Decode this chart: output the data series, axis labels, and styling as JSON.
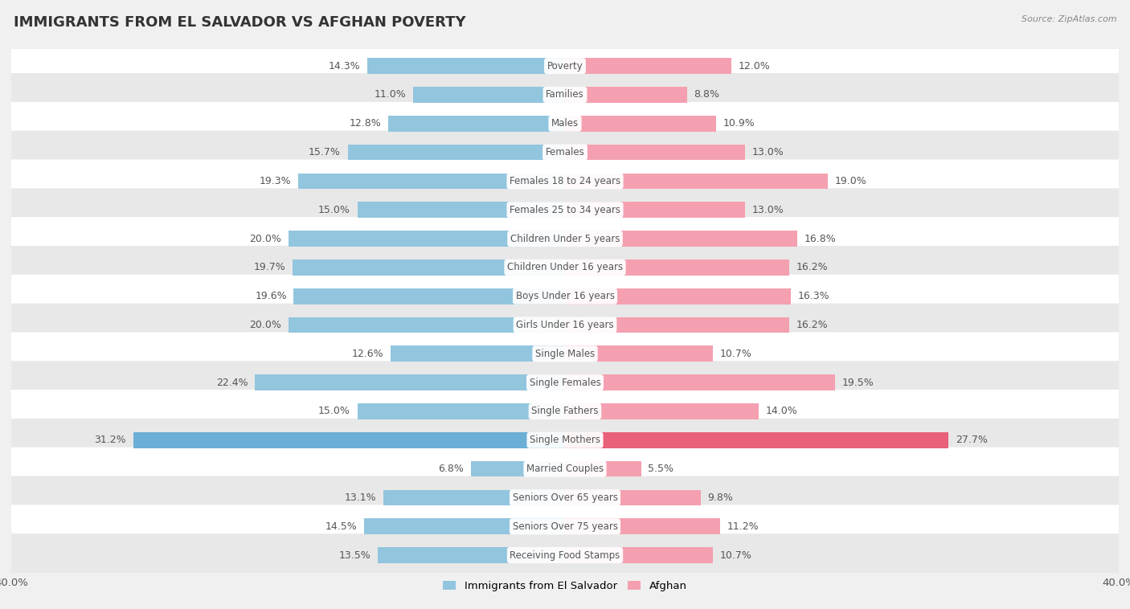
{
  "title": "IMMIGRANTS FROM EL SALVADOR VS AFGHAN POVERTY",
  "source": "Source: ZipAtlas.com",
  "categories": [
    "Poverty",
    "Families",
    "Males",
    "Females",
    "Females 18 to 24 years",
    "Females 25 to 34 years",
    "Children Under 5 years",
    "Children Under 16 years",
    "Boys Under 16 years",
    "Girls Under 16 years",
    "Single Males",
    "Single Females",
    "Single Fathers",
    "Single Mothers",
    "Married Couples",
    "Seniors Over 65 years",
    "Seniors Over 75 years",
    "Receiving Food Stamps"
  ],
  "left_values": [
    14.3,
    11.0,
    12.8,
    15.7,
    19.3,
    15.0,
    20.0,
    19.7,
    19.6,
    20.0,
    12.6,
    22.4,
    15.0,
    31.2,
    6.8,
    13.1,
    14.5,
    13.5
  ],
  "right_values": [
    12.0,
    8.8,
    10.9,
    13.0,
    19.0,
    13.0,
    16.8,
    16.2,
    16.3,
    16.2,
    10.7,
    19.5,
    14.0,
    27.7,
    5.5,
    9.8,
    11.2,
    10.7
  ],
  "left_color": "#92C5DE",
  "right_color": "#F4A0B0",
  "single_mothers_left_color": "#6BAED6",
  "single_mothers_right_color": "#E8607A",
  "axis_max": 40.0,
  "bg_color": "#F0F0F0",
  "row_color_even": "#FFFFFF",
  "row_color_odd": "#E8E8E8",
  "label_fontsize": 8.5,
  "value_fontsize": 9,
  "title_fontsize": 13,
  "legend_left_label": "Immigrants from El Salvador",
  "legend_right_label": "Afghan",
  "left_legend_color": "#92C5DE",
  "right_legend_color": "#F4A0B0"
}
